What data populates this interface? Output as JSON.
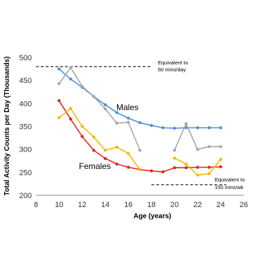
{
  "chart_data": {
    "type": "line",
    "xlabel": "Age (years)",
    "ylabel": "Total Activity Counts per Day (Thousands)",
    "xlim": [
      8,
      26
    ],
    "ylim": [
      200,
      500
    ],
    "xticks": [
      "8",
      "10",
      "12",
      "14",
      "16",
      "18",
      "20",
      "22",
      "24",
      "26"
    ],
    "yticks": [
      "200",
      "250",
      "300",
      "350",
      "400",
      "450",
      "500"
    ],
    "grid": false,
    "series": [
      {
        "name": "Males",
        "color": "#4a90d9",
        "points": [
          [
            10,
            475
          ],
          [
            11,
            453
          ],
          [
            12,
            435
          ],
          [
            13,
            415
          ],
          [
            14,
            397
          ],
          [
            15,
            380
          ],
          [
            16,
            368
          ],
          [
            17,
            358
          ],
          [
            18,
            352
          ],
          [
            19,
            347
          ],
          [
            20,
            346
          ],
          [
            21,
            347
          ],
          [
            22,
            347
          ],
          [
            23,
            347
          ],
          [
            24,
            347
          ]
        ]
      },
      {
        "name": "",
        "color": "#a6a6a6",
        "segments": [
          [
            [
              10,
              443
            ],
            [
              11,
              478
            ],
            [
              12,
              437
            ],
            [
              13,
              415
            ],
            [
              14,
              388
            ],
            [
              15,
              357
            ],
            [
              16,
              359
            ],
            [
              17,
              298
            ]
          ],
          [
            [
              20,
              298
            ],
            [
              21,
              356
            ],
            [
              22,
              300
            ],
            [
              23,
              306
            ],
            [
              24,
              306
            ]
          ]
        ]
      },
      {
        "name": "Females",
        "color": "#e8231a",
        "points": [
          [
            10,
            406
          ],
          [
            11,
            366
          ],
          [
            12,
            328
          ],
          [
            13,
            298
          ],
          [
            14,
            280
          ],
          [
            15,
            268
          ],
          [
            16,
            261
          ],
          [
            17,
            256
          ],
          [
            18,
            253
          ],
          [
            19,
            251
          ],
          [
            20,
            260
          ],
          [
            21,
            260
          ],
          [
            22,
            261
          ],
          [
            23,
            261
          ],
          [
            24,
            262
          ]
        ]
      },
      {
        "name": "",
        "color": "#f5b800",
        "segments": [
          [
            [
              10,
              369
            ],
            [
              11,
              389
            ],
            [
              12,
              350
            ],
            [
              13,
              327
            ],
            [
              14,
              298
            ],
            [
              15,
              305
            ],
            [
              16,
              291
            ],
            [
              17,
              256
            ]
          ],
          [
            [
              20,
              281
            ],
            [
              21,
              268
            ],
            [
              22,
              244
            ],
            [
              23,
              247
            ],
            [
              24,
              278
            ]
          ]
        ]
      }
    ],
    "reference_lines": [
      {
        "label_line1": "Equivalent to",
        "label_line2": "60 mins/day",
        "y": 480,
        "x_start": 8,
        "x_end": 18
      },
      {
        "label_line1": "Equivalent to",
        "label_line2": "150 mins/wk",
        "y": 223,
        "x_start": 18,
        "x_end": 24.5
      }
    ]
  }
}
